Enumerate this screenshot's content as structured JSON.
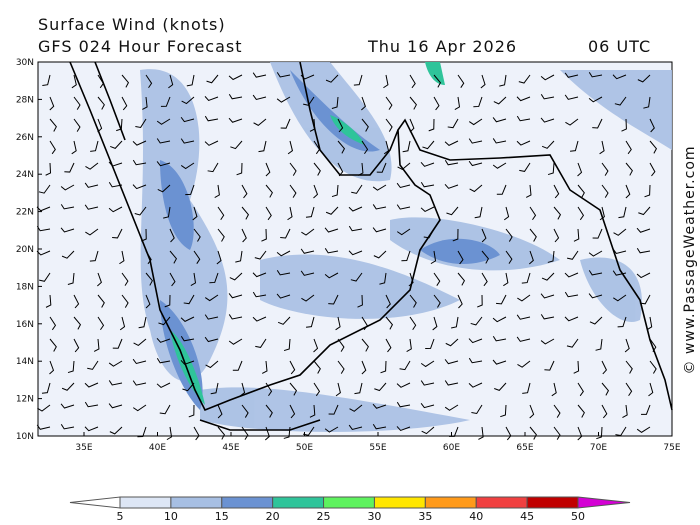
{
  "header": {
    "title": "Surface Wind (knots)",
    "subtitle": "GFS 024 Hour Forecast",
    "date": "Thu 16 Apr 2026",
    "time": "06 UTC"
  },
  "map": {
    "lat_labels": [
      "30N",
      "28N",
      "26N",
      "24N",
      "22N",
      "20N",
      "18N",
      "16N",
      "14N",
      "12N",
      "10N"
    ],
    "lon_labels": [
      "35E",
      "40E",
      "45E",
      "50E",
      "55E",
      "60E",
      "65E",
      "70E",
      "75E"
    ]
  },
  "colorbar": {
    "labels": [
      "5",
      "10",
      "15",
      "20",
      "25",
      "30",
      "35",
      "40",
      "45",
      "50"
    ],
    "colors": [
      "#ffffff",
      "#dde6f5",
      "#a7bfe3",
      "#6b92d2",
      "#2fc49a",
      "#5ef25e",
      "#ffe600",
      "#ff9a1a",
      "#f04040",
      "#c00000",
      "#d400d4"
    ]
  },
  "credit": "© www.PassageWeather.com"
}
